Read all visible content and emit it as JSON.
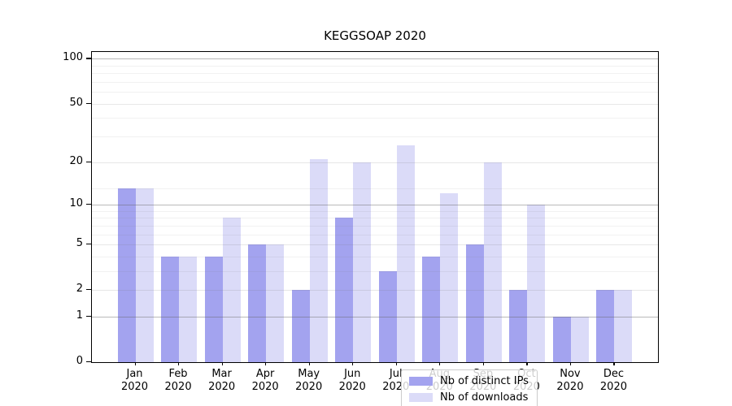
{
  "title": "KEGGSOAP 2020",
  "legend": {
    "items": [
      {
        "label": "Nb of distinct IPs",
        "color": "#a3a3ef"
      },
      {
        "label": "Nb of downloads",
        "color": "#dbdbf8"
      }
    ]
  },
  "chart_data": {
    "type": "bar",
    "title": "KEGGSOAP 2020",
    "categories": [
      "Jan 2020",
      "Feb 2020",
      "Mar 2020",
      "Apr 2020",
      "May 2020",
      "Jun 2020",
      "Jul 2020",
      "Aug 2020",
      "Sep 2020",
      "Oct 2020",
      "Nov 2020",
      "Dec 2020"
    ],
    "series": [
      {
        "name": "Nb of distinct IPs",
        "color": "#a3a3ef",
        "values": [
          13,
          4,
          4,
          5,
          2,
          8,
          3,
          4,
          5,
          2,
          1,
          2
        ]
      },
      {
        "name": "Nb of downloads",
        "color": "#dbdbf8",
        "values": [
          13,
          4,
          8,
          5,
          21,
          20,
          26,
          12,
          20,
          10,
          1,
          2
        ]
      }
    ],
    "xlabel": "",
    "ylabel": "",
    "yscale": "log10(1+x)",
    "ymax": 111,
    "ytick_values": [
      0,
      1,
      2,
      5,
      10,
      20,
      50,
      100
    ],
    "ytick_labels": [
      "0",
      "1",
      "2",
      "5",
      "10",
      "20",
      "50",
      "100"
    ],
    "decade_gridlines": [
      1,
      10,
      100
    ],
    "mid_gridlines": [
      2,
      5,
      20,
      50
    ],
    "minor_gridlines": [
      3,
      4,
      6,
      7,
      8,
      9,
      13,
      30,
      40,
      60,
      70,
      80,
      90
    ],
    "grid": "horizontal",
    "legend_position": "lower center"
  }
}
